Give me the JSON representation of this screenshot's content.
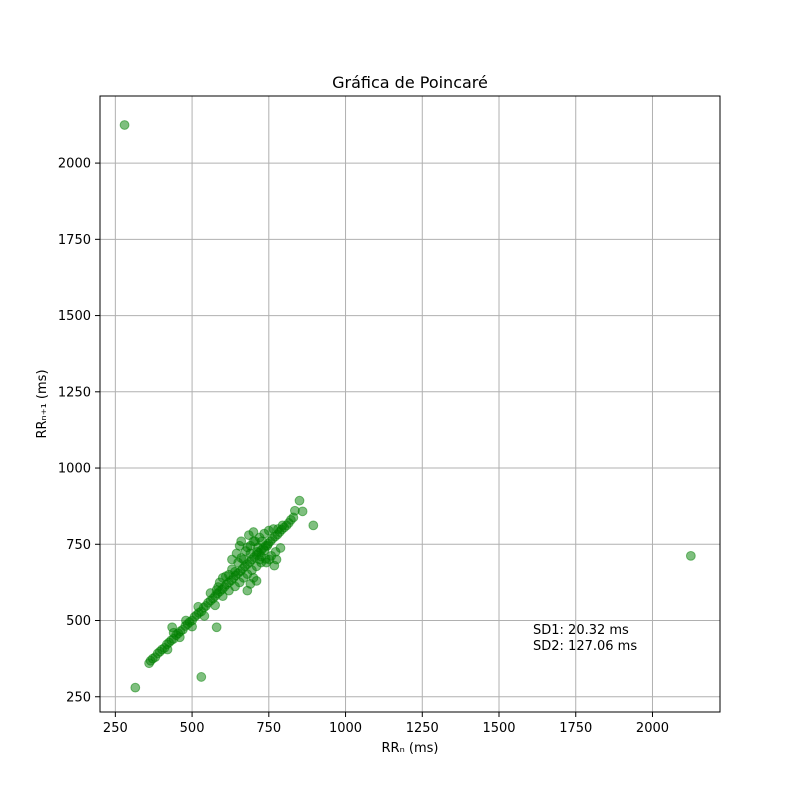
{
  "chart_data": {
    "type": "scatter",
    "title": "Gráfica de Poincaré",
    "xlabel": "RRₙ (ms)",
    "ylabel": "RRₙ₊₁ (ms)",
    "xlim": [
      200,
      2220
    ],
    "ylim": [
      200,
      2220
    ],
    "xticks": [
      250,
      500,
      750,
      1000,
      1250,
      1500,
      1750,
      2000
    ],
    "yticks": [
      250,
      500,
      750,
      1000,
      1250,
      1500,
      1750,
      2000
    ],
    "grid": true,
    "color": "#008000",
    "annotations": [
      "SD1: 20.32 ms",
      "SD2: 127.06 ms"
    ],
    "outliers": [
      {
        "x": 280,
        "y": 2125
      },
      {
        "x": 2125,
        "y": 712
      },
      {
        "x": 315,
        "y": 280
      },
      {
        "x": 530,
        "y": 315
      },
      {
        "x": 580,
        "y": 478
      },
      {
        "x": 435,
        "y": 478
      },
      {
        "x": 850,
        "y": 893
      },
      {
        "x": 895,
        "y": 812
      },
      {
        "x": 860,
        "y": 858
      },
      {
        "x": 835,
        "y": 860
      },
      {
        "x": 580,
        "y": 600
      },
      {
        "x": 680,
        "y": 598
      }
    ],
    "cluster": [
      {
        "x": 360,
        "y": 360
      },
      {
        "x": 365,
        "y": 368
      },
      {
        "x": 372,
        "y": 375
      },
      {
        "x": 380,
        "y": 380
      },
      {
        "x": 388,
        "y": 392
      },
      {
        "x": 395,
        "y": 398
      },
      {
        "x": 402,
        "y": 405
      },
      {
        "x": 410,
        "y": 410
      },
      {
        "x": 418,
        "y": 422
      },
      {
        "x": 425,
        "y": 428
      },
      {
        "x": 432,
        "y": 435
      },
      {
        "x": 440,
        "y": 440
      },
      {
        "x": 448,
        "y": 452
      },
      {
        "x": 455,
        "y": 458
      },
      {
        "x": 462,
        "y": 465
      },
      {
        "x": 470,
        "y": 470
      },
      {
        "x": 478,
        "y": 482
      },
      {
        "x": 485,
        "y": 488
      },
      {
        "x": 492,
        "y": 495
      },
      {
        "x": 500,
        "y": 500
      },
      {
        "x": 508,
        "y": 512
      },
      {
        "x": 515,
        "y": 518
      },
      {
        "x": 522,
        "y": 525
      },
      {
        "x": 530,
        "y": 530
      },
      {
        "x": 538,
        "y": 542
      },
      {
        "x": 545,
        "y": 548
      },
      {
        "x": 552,
        "y": 558
      },
      {
        "x": 560,
        "y": 565
      },
      {
        "x": 568,
        "y": 572
      },
      {
        "x": 575,
        "y": 580
      },
      {
        "x": 582,
        "y": 588
      },
      {
        "x": 590,
        "y": 595
      },
      {
        "x": 598,
        "y": 602
      },
      {
        "x": 605,
        "y": 610
      },
      {
        "x": 612,
        "y": 618
      },
      {
        "x": 620,
        "y": 625
      },
      {
        "x": 628,
        "y": 632
      },
      {
        "x": 635,
        "y": 640
      },
      {
        "x": 642,
        "y": 648
      },
      {
        "x": 650,
        "y": 655
      },
      {
        "x": 658,
        "y": 662
      },
      {
        "x": 665,
        "y": 670
      },
      {
        "x": 672,
        "y": 678
      },
      {
        "x": 680,
        "y": 685
      },
      {
        "x": 688,
        "y": 692
      },
      {
        "x": 695,
        "y": 700
      },
      {
        "x": 702,
        "y": 708
      },
      {
        "x": 710,
        "y": 715
      },
      {
        "x": 718,
        "y": 722
      },
      {
        "x": 725,
        "y": 730
      },
      {
        "x": 732,
        "y": 738
      },
      {
        "x": 740,
        "y": 745
      },
      {
        "x": 748,
        "y": 752
      },
      {
        "x": 755,
        "y": 760
      },
      {
        "x": 762,
        "y": 768
      },
      {
        "x": 770,
        "y": 775
      },
      {
        "x": 778,
        "y": 782
      },
      {
        "x": 785,
        "y": 790
      },
      {
        "x": 792,
        "y": 798
      },
      {
        "x": 800,
        "y": 805
      },
      {
        "x": 808,
        "y": 812
      },
      {
        "x": 815,
        "y": 820
      },
      {
        "x": 822,
        "y": 830
      },
      {
        "x": 830,
        "y": 838
      },
      {
        "x": 420,
        "y": 405
      },
      {
        "x": 440,
        "y": 460
      },
      {
        "x": 460,
        "y": 445
      },
      {
        "x": 480,
        "y": 500
      },
      {
        "x": 500,
        "y": 480
      },
      {
        "x": 520,
        "y": 545
      },
      {
        "x": 540,
        "y": 515
      },
      {
        "x": 560,
        "y": 590
      },
      {
        "x": 575,
        "y": 550
      },
      {
        "x": 590,
        "y": 625
      },
      {
        "x": 600,
        "y": 580
      },
      {
        "x": 610,
        "y": 645
      },
      {
        "x": 620,
        "y": 598
      },
      {
        "x": 630,
        "y": 668
      },
      {
        "x": 640,
        "y": 612
      },
      {
        "x": 650,
        "y": 690
      },
      {
        "x": 655,
        "y": 625
      },
      {
        "x": 660,
        "y": 705
      },
      {
        "x": 668,
        "y": 640
      },
      {
        "x": 675,
        "y": 728
      },
      {
        "x": 680,
        "y": 652
      },
      {
        "x": 690,
        "y": 745
      },
      {
        "x": 695,
        "y": 665
      },
      {
        "x": 705,
        "y": 760
      },
      {
        "x": 710,
        "y": 678
      },
      {
        "x": 720,
        "y": 772
      },
      {
        "x": 725,
        "y": 690
      },
      {
        "x": 735,
        "y": 785
      },
      {
        "x": 740,
        "y": 702
      },
      {
        "x": 750,
        "y": 795
      },
      {
        "x": 758,
        "y": 712
      },
      {
        "x": 765,
        "y": 800
      },
      {
        "x": 772,
        "y": 725
      },
      {
        "x": 780,
        "y": 800
      },
      {
        "x": 788,
        "y": 738
      },
      {
        "x": 795,
        "y": 812
      },
      {
        "x": 645,
        "y": 720
      },
      {
        "x": 655,
        "y": 745
      },
      {
        "x": 668,
        "y": 700
      },
      {
        "x": 685,
        "y": 780
      },
      {
        "x": 700,
        "y": 790
      },
      {
        "x": 715,
        "y": 740
      },
      {
        "x": 728,
        "y": 760
      },
      {
        "x": 742,
        "y": 690
      },
      {
        "x": 745,
        "y": 745
      },
      {
        "x": 752,
        "y": 700
      },
      {
        "x": 768,
        "y": 680
      },
      {
        "x": 775,
        "y": 700
      },
      {
        "x": 700,
        "y": 640
      },
      {
        "x": 710,
        "y": 630
      },
      {
        "x": 690,
        "y": 620
      },
      {
        "x": 640,
        "y": 660
      },
      {
        "x": 630,
        "y": 700
      },
      {
        "x": 620,
        "y": 650
      },
      {
        "x": 600,
        "y": 640
      },
      {
        "x": 585,
        "y": 610
      },
      {
        "x": 660,
        "y": 760
      },
      {
        "x": 700,
        "y": 760
      },
      {
        "x": 720,
        "y": 700
      },
      {
        "x": 735,
        "y": 730
      },
      {
        "x": 690,
        "y": 720
      },
      {
        "x": 680,
        "y": 740
      },
      {
        "x": 712,
        "y": 725
      },
      {
        "x": 725,
        "y": 710
      }
    ]
  }
}
